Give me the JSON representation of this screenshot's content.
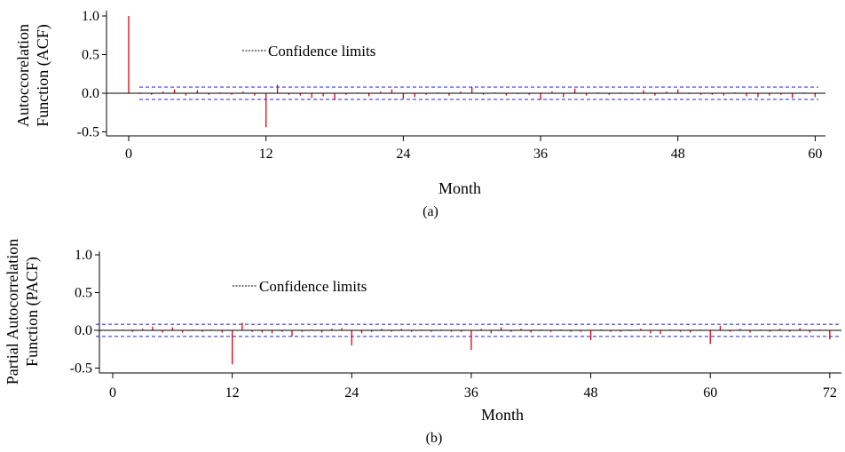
{
  "chart_data": [
    {
      "type": "bar",
      "panel_label": "(a)",
      "xlabel": "Month",
      "ylabel": "Autoccorelation Function (ACF)",
      "ylabel_lines": [
        "Autoccorelation",
        "Function (ACF)"
      ],
      "legend": "Confidence limits",
      "xlim": [
        -5,
        62
      ],
      "ylim": [
        -0.55,
        1.1
      ],
      "xticks": [
        "0",
        "12",
        "24",
        "36",
        "48",
        "60"
      ],
      "xtick_values": [
        0,
        12,
        24,
        36,
        48,
        60
      ],
      "yticks": [
        "1.0",
        "0.5",
        "0.0",
        "-0.5"
      ],
      "ytick_values": [
        1.0,
        0.5,
        0.0,
        -0.5
      ],
      "confidence_limits": {
        "upper": 0.08,
        "lower": -0.08,
        "x_start": 1,
        "x_end": 60
      },
      "lags": [
        0,
        1,
        2,
        3,
        4,
        5,
        6,
        7,
        8,
        9,
        10,
        11,
        12,
        13,
        14,
        15,
        16,
        17,
        18,
        19,
        20,
        21,
        22,
        23,
        24,
        25,
        26,
        27,
        28,
        29,
        30,
        31,
        32,
        33,
        34,
        35,
        36,
        37,
        38,
        39,
        40,
        41,
        42,
        43,
        44,
        45,
        46,
        47,
        48,
        49,
        50,
        51,
        52,
        53,
        54,
        55,
        56,
        57,
        58,
        59,
        60
      ],
      "values": [
        1.0,
        0.01,
        -0.02,
        0.02,
        0.05,
        -0.03,
        0.04,
        -0.02,
        0.01,
        -0.02,
        0.02,
        -0.03,
        -0.44,
        0.11,
        -0.02,
        -0.03,
        -0.06,
        -0.04,
        -0.09,
        -0.02,
        0.01,
        -0.04,
        0.02,
        0.05,
        -0.07,
        -0.05,
        -0.02,
        0.01,
        -0.03,
        0.02,
        0.08,
        -0.02,
        0.01,
        -0.03,
        -0.01,
        -0.02,
        -0.09,
        0.02,
        -0.05,
        0.06,
        -0.03,
        0.01,
        -0.02,
        0.01,
        -0.01,
        0.04,
        -0.03,
        0.02,
        0.05,
        -0.01,
        -0.02,
        -0.02,
        -0.03,
        0.01,
        -0.04,
        -0.05,
        -0.03,
        -0.02,
        -0.06,
        0.01,
        -0.05
      ],
      "colors": {
        "bars": "#e8000b",
        "confidence": "#3a3af0",
        "axis": "#000000"
      }
    },
    {
      "type": "bar",
      "panel_label": "(b)",
      "xlabel": "Month",
      "ylabel": "Partial Autocorrelation Function (PACF)",
      "ylabel_lines": [
        "Partial Autocorrelation",
        "Function (PACF)"
      ],
      "legend": "Confidence limits",
      "xlim": [
        -4,
        74
      ],
      "ylim": [
        -0.55,
        1.1
      ],
      "xticks": [
        "0",
        "12",
        "24",
        "36",
        "48",
        "60",
        "72"
      ],
      "xtick_values": [
        0,
        12,
        24,
        36,
        48,
        60,
        72
      ],
      "yticks": [
        "1.0",
        "0.5",
        "0.0",
        "-0.5"
      ],
      "ytick_values": [
        1.0,
        0.5,
        0.0,
        -0.5
      ],
      "confidence_limits": {
        "upper": 0.08,
        "lower": -0.08,
        "x_start": -4,
        "x_end": 74
      },
      "lags": [
        1,
        2,
        3,
        4,
        5,
        6,
        7,
        8,
        9,
        10,
        11,
        12,
        13,
        14,
        15,
        16,
        17,
        18,
        19,
        20,
        21,
        22,
        23,
        24,
        25,
        26,
        27,
        28,
        29,
        30,
        31,
        32,
        33,
        34,
        35,
        36,
        37,
        38,
        39,
        40,
        41,
        42,
        43,
        44,
        45,
        46,
        47,
        48,
        49,
        50,
        51,
        52,
        53,
        54,
        55,
        56,
        57,
        58,
        59,
        60,
        61,
        62,
        63,
        64,
        65,
        66,
        67,
        68,
        69,
        70,
        71,
        72
      ],
      "values": [
        0.01,
        -0.02,
        0.02,
        0.05,
        -0.03,
        0.04,
        -0.03,
        0.01,
        -0.02,
        0.01,
        -0.03,
        -0.45,
        0.1,
        -0.02,
        -0.03,
        -0.04,
        -0.02,
        -0.08,
        -0.02,
        0.01,
        -0.03,
        0.02,
        0.03,
        -0.2,
        -0.04,
        -0.02,
        0.02,
        -0.02,
        0.02,
        -0.02,
        0.01,
        -0.02,
        0.01,
        -0.02,
        -0.02,
        -0.26,
        0.02,
        -0.04,
        0.04,
        -0.02,
        0.02,
        -0.03,
        0.01,
        -0.02,
        0.01,
        -0.02,
        -0.02,
        -0.13,
        0.01,
        -0.02,
        -0.02,
        -0.01,
        0.02,
        -0.04,
        -0.05,
        0.01,
        -0.02,
        -0.03,
        0.01,
        -0.18,
        0.06,
        -0.02,
        0.02,
        -0.03,
        0.01,
        -0.02,
        0.02,
        -0.02,
        0.03,
        -0.03,
        0.01,
        -0.12
      ],
      "colors": {
        "bars": "#e8000b",
        "confidence": "#3a3af0",
        "axis": "#000000"
      }
    }
  ]
}
